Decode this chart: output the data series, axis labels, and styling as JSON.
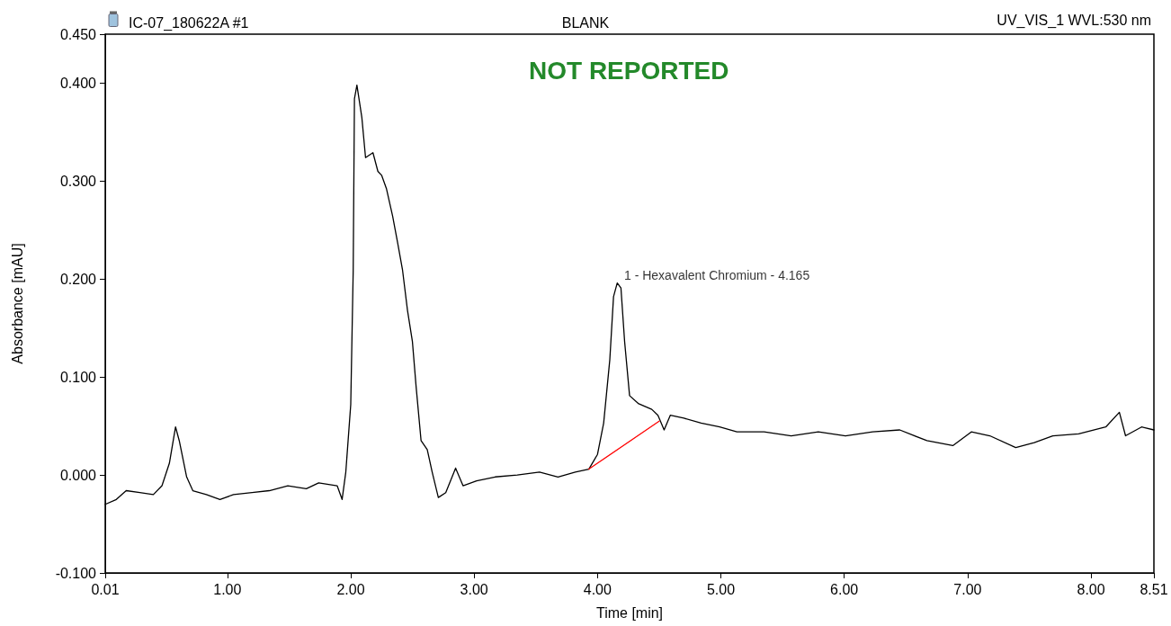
{
  "chart_data": {
    "type": "line",
    "title": "IC-07_180622A #1",
    "subtitle": "BLANK",
    "xlabel": "Time [min]",
    "ylabel": "Absorbance [mAU]",
    "annotations": [
      "UV_VIS_1 WVL:530 nm",
      "NOT REPORTED",
      {
        "text": "1 - Hexavalent Chromium - 4.165",
        "x": 4.165,
        "y": 0.2
      }
    ],
    "series": [
      {
        "color": "#000000",
        "x": [
          0.01,
          0.1,
          0.18,
          0.29,
          0.4,
          0.47,
          0.53,
          0.58,
          0.61,
          0.67,
          0.72,
          0.83,
          0.94,
          1.05,
          1.2,
          1.34,
          1.49,
          1.64,
          1.74,
          1.89,
          1.93,
          1.96,
          2.0,
          2.02,
          2.03,
          2.05,
          2.09,
          2.12,
          2.18,
          2.22,
          2.25,
          2.29,
          2.34,
          2.38,
          2.42,
          2.46,
          2.5,
          2.53,
          2.57,
          2.62,
          2.66,
          2.71,
          2.77,
          2.85,
          2.91,
          3.02,
          3.17,
          3.35,
          3.53,
          3.68,
          3.82,
          3.93,
          4.0,
          4.05,
          4.1,
          4.13,
          4.16,
          4.19,
          4.22,
          4.26,
          4.33,
          4.44,
          4.49,
          4.54,
          4.59,
          4.7,
          4.84,
          4.99,
          5.13,
          5.35,
          5.57,
          5.79,
          6.01,
          6.23,
          6.45,
          6.67,
          6.88,
          7.03,
          7.18,
          7.39,
          7.54,
          7.69,
          7.9,
          8.12,
          8.23,
          8.28,
          8.41,
          8.51
        ],
        "values": [
          -0.03,
          -0.025,
          -0.016,
          -0.018,
          -0.02,
          -0.011,
          0.012,
          0.049,
          0.035,
          -0.002,
          -0.016,
          -0.02,
          -0.025,
          -0.02,
          -0.018,
          -0.016,
          -0.011,
          -0.014,
          -0.008,
          -0.011,
          -0.025,
          0.003,
          0.072,
          0.209,
          0.384,
          0.398,
          0.365,
          0.324,
          0.329,
          0.31,
          0.306,
          0.292,
          0.264,
          0.237,
          0.209,
          0.168,
          0.136,
          0.09,
          0.035,
          0.026,
          0.003,
          -0.023,
          -0.018,
          0.007,
          -0.011,
          -0.006,
          -0.002,
          0.0,
          0.003,
          -0.002,
          0.003,
          0.006,
          0.021,
          0.053,
          0.118,
          0.182,
          0.196,
          0.191,
          0.136,
          0.081,
          0.073,
          0.067,
          0.061,
          0.046,
          0.061,
          0.058,
          0.053,
          0.049,
          0.044,
          0.044,
          0.04,
          0.044,
          0.04,
          0.044,
          0.046,
          0.035,
          0.03,
          0.044,
          0.04,
          0.028,
          0.033,
          0.04,
          0.042,
          0.049,
          0.064,
          0.04,
          0.049,
          0.046
        ]
      },
      {
        "color": "#ff0000",
        "x": [
          3.93,
          4.5
        ],
        "values": [
          0.006,
          0.055
        ]
      }
    ],
    "xlim": [
      0.01,
      8.51
    ],
    "xticks": [
      0.01,
      {
        "value": 1,
        "label": "1.00"
      },
      {
        "value": 2,
        "label": "2.00"
      },
      {
        "value": 3,
        "label": "3.00"
      },
      {
        "value": 4,
        "label": "4.00"
      },
      {
        "value": 5,
        "label": "5.00"
      },
      {
        "value": 6,
        "label": "6.00"
      },
      {
        "value": 7,
        "label": "7.00"
      },
      {
        "value": 8,
        "label": "8.00"
      },
      8.51
    ],
    "ylim": [
      -0.1,
      0.45
    ],
    "yticks": [
      {
        "value": -0.1,
        "label": "-0.100"
      },
      {
        "value": 0,
        "label": "0.000"
      },
      {
        "value": 0.1,
        "label": "0.100"
      },
      {
        "value": 0.2,
        "label": "0.200"
      },
      {
        "value": 0.3,
        "label": "0.300"
      },
      {
        "value": 0.4,
        "label": "0.400"
      },
      {
        "value": 0.45,
        "label": "0.450"
      }
    ],
    "grid": false,
    "marker": "none",
    "line_style": "solid"
  }
}
